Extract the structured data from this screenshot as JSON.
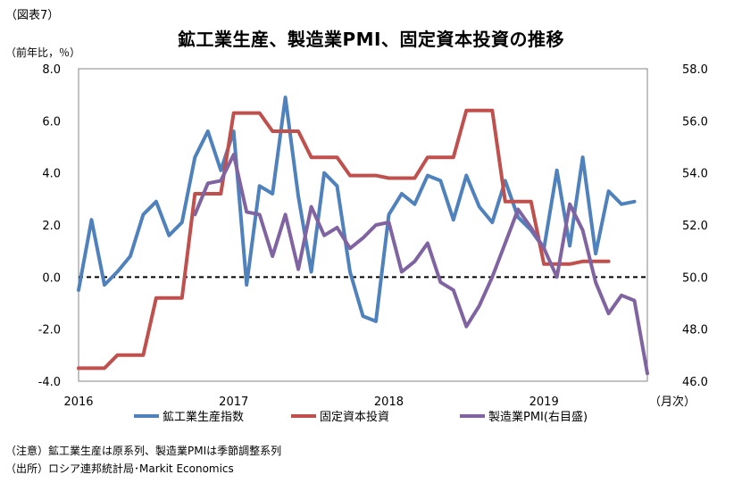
{
  "figure_label": "（図表7）",
  "notes": {
    "note": "（注意）鉱工業生産は原系列、製造業PMIは季節調整系列",
    "source": "（出所）ロシア連邦統計局･Markit Economics"
  },
  "chart_data": {
    "type": "line",
    "title": "鉱工業生産、製造業PMI、固定資本投資の推移",
    "ylabel_left": "（前年比，％）",
    "xlabel": "（月次）",
    "ylim_left": [
      -4.0,
      8.0
    ],
    "ylim_right": [
      46.0,
      58.0
    ],
    "yticks_left": [
      "8.0",
      "6.0",
      "4.0",
      "2.0",
      "0.0",
      "-2.0",
      "-4.0"
    ],
    "yticks_right": [
      "58.0",
      "56.0",
      "54.0",
      "52.0",
      "50.0",
      "48.0",
      "46.0"
    ],
    "x_ticks": [
      {
        "label": "2016",
        "month_index": 0
      },
      {
        "label": "2017",
        "month_index": 12
      },
      {
        "label": "2018",
        "month_index": 24
      },
      {
        "label": "2019",
        "month_index": 36
      }
    ],
    "x_range_months": [
      0,
      44
    ],
    "zero_line": {
      "value": 0.0,
      "style": "dashed"
    },
    "series": [
      {
        "name": "鉱工業生産指数",
        "axis": "left",
        "color": "#4f81bd",
        "start_month": 0,
        "values": [
          -0.5,
          2.2,
          -0.3,
          0.2,
          0.8,
          2.4,
          2.9,
          1.6,
          2.1,
          4.6,
          5.6,
          4.1,
          5.6,
          -0.3,
          3.5,
          3.2,
          6.9,
          3.1,
          0.2,
          4.0,
          3.5,
          0.2,
          -1.5,
          -1.7,
          2.4,
          3.2,
          2.8,
          3.9,
          3.7,
          2.2,
          3.9,
          2.7,
          2.1,
          3.7,
          2.3,
          1.8,
          1.1,
          4.1,
          1.2,
          4.6,
          0.9,
          3.3,
          2.8,
          2.9
        ]
      },
      {
        "name": "固定資本投資",
        "axis": "left",
        "color": "#c0504d",
        "points": [
          {
            "month": 0,
            "value": -3.5
          },
          {
            "month": 2,
            "value": -3.5
          },
          {
            "month": 3,
            "value": -3.0
          },
          {
            "month": 5,
            "value": -3.0
          },
          {
            "month": 6,
            "value": -0.8
          },
          {
            "month": 8,
            "value": -0.8
          },
          {
            "month": 9,
            "value": 3.2
          },
          {
            "month": 11,
            "value": 3.2
          },
          {
            "month": 12,
            "value": 6.3
          },
          {
            "month": 14,
            "value": 6.3
          },
          {
            "month": 15,
            "value": 5.6
          },
          {
            "month": 17,
            "value": 5.6
          },
          {
            "month": 18,
            "value": 4.6
          },
          {
            "month": 20,
            "value": 4.6
          },
          {
            "month": 21,
            "value": 3.9
          },
          {
            "month": 23,
            "value": 3.9
          },
          {
            "month": 24,
            "value": 3.8
          },
          {
            "month": 26,
            "value": 3.8
          },
          {
            "month": 27,
            "value": 4.6
          },
          {
            "month": 29,
            "value": 4.6
          },
          {
            "month": 30,
            "value": 6.4
          },
          {
            "month": 32,
            "value": 6.4
          },
          {
            "month": 33,
            "value": 2.9
          },
          {
            "month": 35,
            "value": 2.9
          },
          {
            "month": 36,
            "value": 0.5
          },
          {
            "month": 38,
            "value": 0.5
          },
          {
            "month": 39,
            "value": 0.6
          },
          {
            "month": 41,
            "value": 0.6
          }
        ]
      },
      {
        "name": "製造業PMI(右目盛)",
        "axis": "right",
        "color": "#8064a2",
        "start_month": 9,
        "values": [
          52.4,
          53.6,
          53.7,
          54.7,
          52.5,
          52.4,
          50.8,
          52.4,
          50.3,
          52.7,
          51.6,
          51.9,
          51.1,
          51.5,
          52.0,
          52.1,
          50.2,
          50.6,
          51.3,
          49.8,
          49.5,
          48.1,
          48.9,
          50.0,
          51.3,
          52.6,
          51.9,
          51.1,
          50.0,
          52.8,
          51.8,
          49.8,
          48.6,
          49.3,
          49.1,
          46.3
        ]
      }
    ],
    "legend": {
      "position": "bottom"
    }
  }
}
